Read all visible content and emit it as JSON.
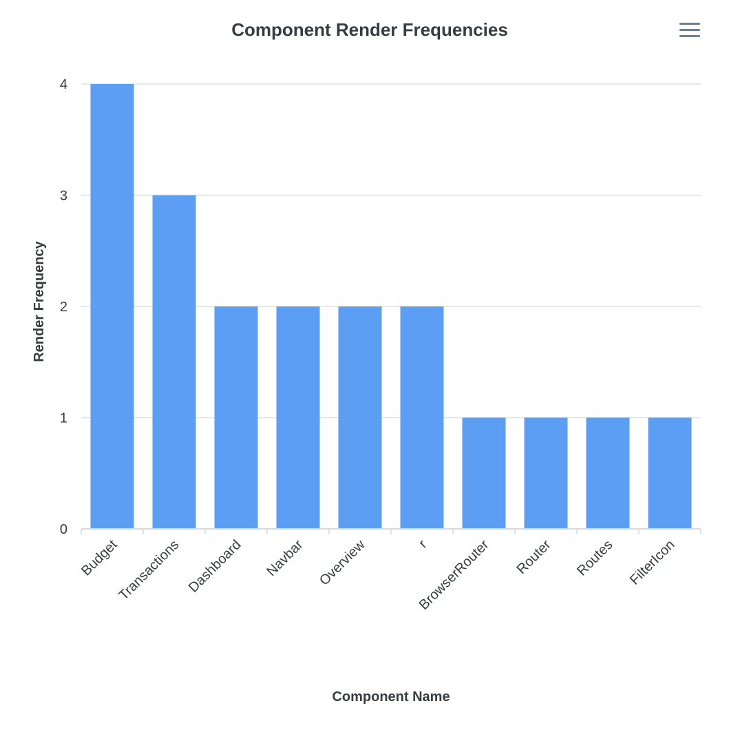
{
  "chart_data": {
    "type": "bar",
    "title": "Component Render Frequencies",
    "xlabel": "Component Name",
    "ylabel": "Render Frequency",
    "categories": [
      "Budget",
      "Transactions",
      "Dashboard",
      "Navbar",
      "Overview",
      "r",
      "BrowserRouter",
      "Router",
      "Routes",
      "FilterIcon"
    ],
    "values": [
      4,
      3,
      2,
      2,
      2,
      2,
      1,
      1,
      1,
      1
    ],
    "ylim": [
      0,
      4
    ],
    "yticks": [
      0,
      1,
      2,
      3,
      4
    ],
    "grid": true,
    "bar_color": "#5b9ef4",
    "legend": "none"
  },
  "toolbar": {
    "menu_icon": "hamburger-menu-icon"
  }
}
